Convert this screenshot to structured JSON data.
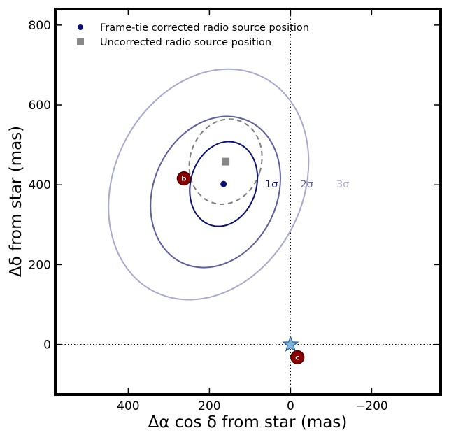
{
  "chart_data": {
    "type": "scatter",
    "xlabel": "Δα cos δ from star (mas)",
    "ylabel": "Δδ from star (mas)",
    "xlim": [
      580,
      -370
    ],
    "ylim": [
      -125,
      840
    ],
    "x_inverted": true,
    "xticks": [
      400,
      200,
      0,
      -200
    ],
    "xtick_labels": [
      "400",
      "200",
      "0",
      "−200"
    ],
    "yticks": [
      0,
      200,
      400,
      600,
      800
    ],
    "ytick_labels": [
      "0",
      "200",
      "400",
      "600",
      "800"
    ],
    "grid": false,
    "legend_position": "top-left",
    "legend": [
      {
        "label": "Frame-tie corrected radio source position",
        "marker": "circle",
        "color": "#0a1172"
      },
      {
        "label": "Uncorrected radio source position",
        "marker": "square",
        "color": "#888888"
      }
    ],
    "points": {
      "corrected": {
        "x": 165,
        "y": 402
      },
      "uncorrected": {
        "x": 160,
        "y": 458
      },
      "star": {
        "x": 0,
        "y": 0
      },
      "marker_b": {
        "x": 263,
        "y": 416,
        "label": "b"
      },
      "marker_c": {
        "x": -17,
        "y": -32,
        "label": "c"
      }
    },
    "reference_lines": [
      {
        "axis": "x",
        "value": 0,
        "style": "dotted"
      },
      {
        "axis": "y",
        "value": 0,
        "style": "dotted"
      }
    ],
    "ellipses": [
      {
        "name": "1σ",
        "label": "1σ",
        "cx": 165,
        "cy": 402,
        "rx": 81,
        "ry": 108,
        "angle_deg": 17,
        "color": "#0a1172",
        "style": "solid"
      },
      {
        "name": "2σ",
        "label": "2σ",
        "cx": 185,
        "cy": 382,
        "rx": 152,
        "ry": 196,
        "angle_deg": 25,
        "color": "#5e5fa0",
        "style": "solid"
      },
      {
        "name": "3σ",
        "label": "3σ",
        "cx": 202,
        "cy": 401,
        "rx": 232,
        "ry": 301,
        "angle_deg": 27,
        "color": "#a8aacd",
        "style": "solid"
      },
      {
        "name": "uncorrected",
        "label": "",
        "cx": 160,
        "cy": 458,
        "rx": 88,
        "ry": 108,
        "angle_deg": 17,
        "color": "#808080",
        "style": "dashed"
      }
    ],
    "sigma_label_positions": [
      {
        "label": "1σ",
        "x": 63,
        "y": 402,
        "color": "#0a1172"
      },
      {
        "label": "2σ",
        "x": -24,
        "y": 402,
        "color": "#5e5fa0"
      },
      {
        "label": "3σ",
        "x": -113,
        "y": 402,
        "color": "#a8aacd"
      }
    ]
  }
}
